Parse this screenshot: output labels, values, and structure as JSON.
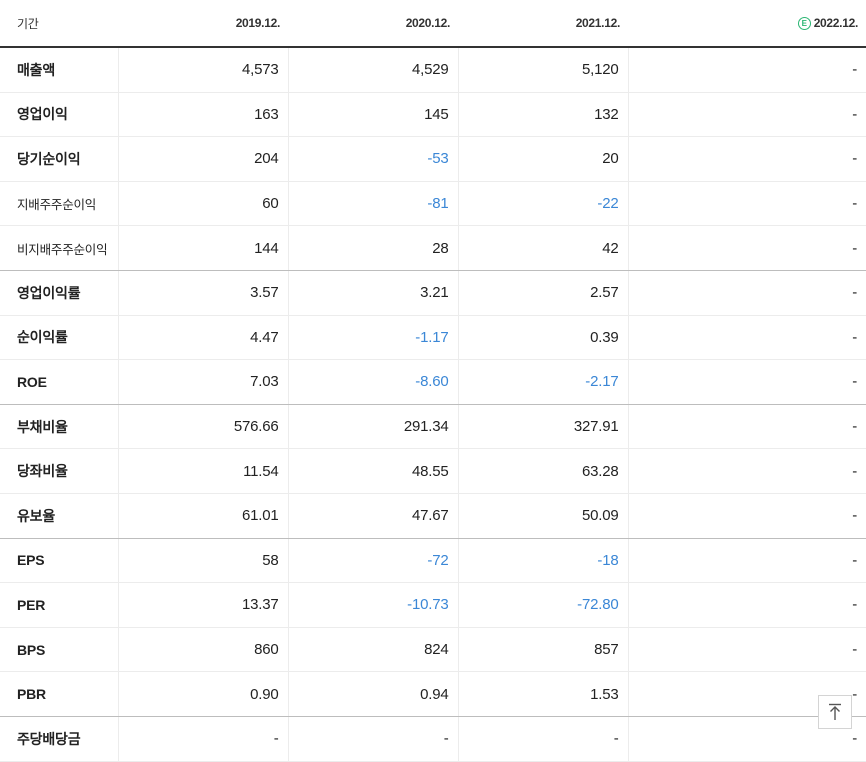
{
  "header": {
    "period_label": "기간",
    "years": [
      "2019.12.",
      "2020.12.",
      "2021.12."
    ],
    "estimate_year": "2022.12.",
    "estimate_badge": "E"
  },
  "rows": [
    {
      "label": "매출액",
      "values": [
        "4,573",
        "4,529",
        "5,120",
        "-"
      ]
    },
    {
      "label": "영업이익",
      "values": [
        "163",
        "145",
        "132",
        "-"
      ]
    },
    {
      "label": "당기순이익",
      "values": [
        "204",
        "-53",
        "20",
        "-"
      ]
    },
    {
      "label": "지배주주순이익",
      "values": [
        "60",
        "-81",
        "-22",
        "-"
      ]
    },
    {
      "label": "비지배주주순이익",
      "values": [
        "144",
        "28",
        "42",
        "-"
      ]
    },
    {
      "label": "영업이익률",
      "values": [
        "3.57",
        "3.21",
        "2.57",
        "-"
      ]
    },
    {
      "label": "순이익률",
      "values": [
        "4.47",
        "-1.17",
        "0.39",
        "-"
      ]
    },
    {
      "label": "ROE",
      "values": [
        "7.03",
        "-8.60",
        "-2.17",
        "-"
      ]
    },
    {
      "label": "부채비율",
      "values": [
        "576.66",
        "291.34",
        "327.91",
        "-"
      ]
    },
    {
      "label": "당좌비율",
      "values": [
        "11.54",
        "48.55",
        "63.28",
        "-"
      ]
    },
    {
      "label": "유보율",
      "values": [
        "61.01",
        "47.67",
        "50.09",
        "-"
      ]
    },
    {
      "label": "EPS",
      "values": [
        "58",
        "-72",
        "-18",
        "-"
      ]
    },
    {
      "label": "PER",
      "values": [
        "13.37",
        "-10.73",
        "-72.80",
        "-"
      ]
    },
    {
      "label": "BPS",
      "values": [
        "860",
        "824",
        "857",
        "-"
      ]
    },
    {
      "label": "PBR",
      "values": [
        "0.90",
        "0.94",
        "1.53",
        "-"
      ]
    },
    {
      "label": "주당배당금",
      "values": [
        "-",
        "-",
        "-",
        "-"
      ]
    }
  ],
  "colors": {
    "negative": "#3b87d6",
    "estimate_badge": "#2bb673",
    "header_rule": "#333333"
  },
  "scroll_top_icon": "arrow-up-icon"
}
